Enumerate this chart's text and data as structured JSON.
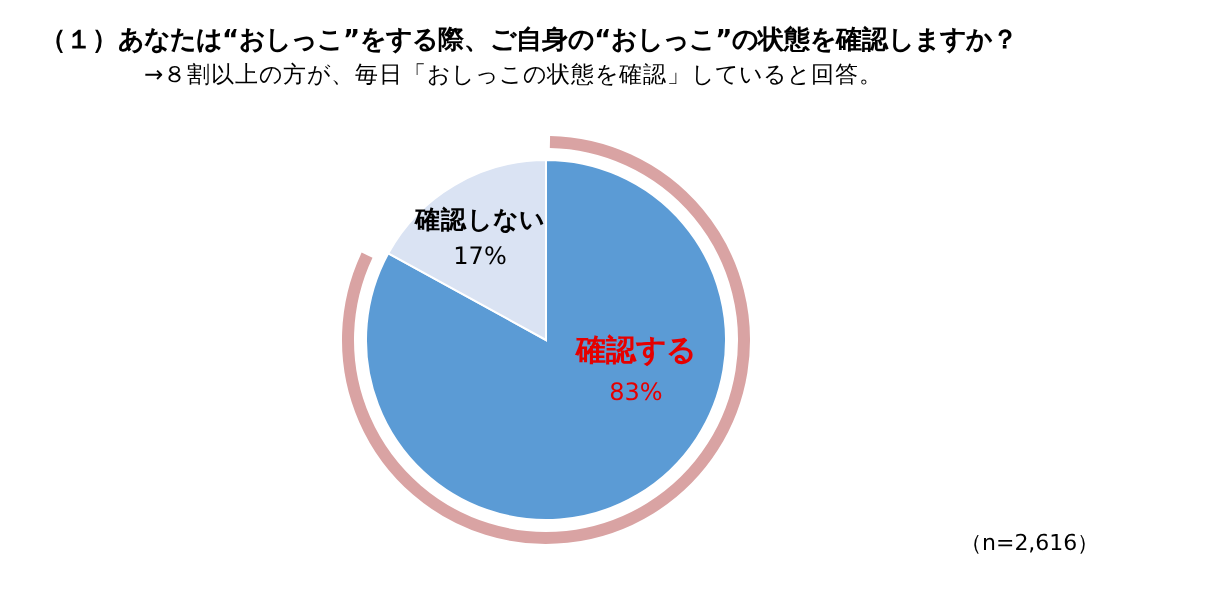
{
  "chart_data": {
    "type": "pie",
    "title": "（１）あなたは“おしっこ”をする際、ご自身の“おしっこ”の状態を確認しますか？",
    "subtitle": "→８割以上の方が、毎日「おしっこの状態を確認」していると回答。",
    "categories": [
      "確認する",
      "確認しない"
    ],
    "values": [
      83,
      17
    ],
    "colors": [
      "#5b9bd5",
      "#dae3f3"
    ],
    "value_labels": [
      "83%",
      "17%"
    ],
    "annotations": [
      "（n=2,616）"
    ]
  }
}
